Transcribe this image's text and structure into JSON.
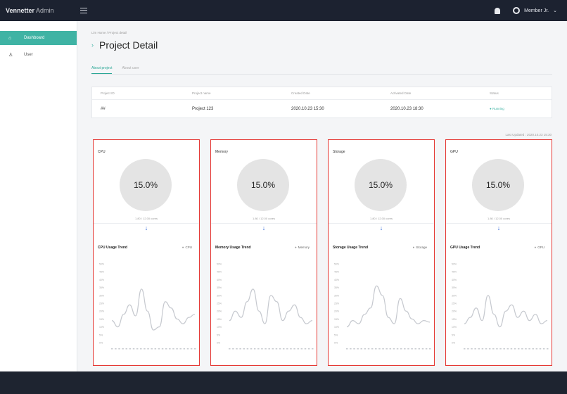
{
  "app": {
    "brand_main": "Vennetter",
    "brand_sub": "Admin",
    "user_name": "Member Jr."
  },
  "sidebar": {
    "items": [
      {
        "label": "Dashboard",
        "icon": "home-icon",
        "active": true
      },
      {
        "label": "User",
        "icon": "user-icon",
        "active": false
      }
    ]
  },
  "page": {
    "breadcrumb": "Lim Home / Project detail",
    "title": "Project Detail",
    "tabs": [
      "About project",
      "About user"
    ],
    "last_updated": "Last Updated : 2020.10.23 15:30"
  },
  "project_table": {
    "headers": [
      "Project ID",
      "Project name",
      "Created Date",
      "Activated Date",
      "Status"
    ],
    "row": [
      "##",
      "Project 123",
      "2020.10.23 15:30",
      "2020.10.23 18:30",
      "Running"
    ]
  },
  "accent_color": "#3fb3a4",
  "cards": [
    {
      "label": "CPU",
      "value": "15.0%",
      "sub": "1.80 / 12.00 cores",
      "trend_title": "CPU Usage Trend",
      "legend": "CPU"
    },
    {
      "label": "Memory",
      "value": "15.0%",
      "sub": "1.80 / 12.00 cores",
      "trend_title": "Memory Usage Trend",
      "legend": "Memory"
    },
    {
      "label": "Storage",
      "value": "15.0%",
      "sub": "1.80 / 12.00 cores",
      "trend_title": "Storage Usage Trend",
      "legend": "Storage"
    },
    {
      "label": "GPU",
      "value": "15.0%",
      "sub": "1.80 / 12.00 cores",
      "trend_title": "GPU Usage Trend",
      "legend": "GPU"
    }
  ],
  "trend_charts": [
    {
      "y_ticks": [
        "50%",
        "45%",
        "40%",
        "35%",
        "30%",
        "25%",
        "20%",
        "15%",
        "10%",
        "5%",
        "0%"
      ],
      "values": [
        14,
        10,
        18,
        24,
        17,
        34,
        20,
        8,
        10,
        26,
        22,
        15,
        12,
        16,
        18
      ]
    },
    {
      "y_ticks": [
        "50%",
        "45%",
        "40%",
        "35%",
        "30%",
        "25%",
        "20%",
        "15%",
        "10%",
        "5%",
        "0%"
      ],
      "values": [
        14,
        20,
        16,
        26,
        34,
        20,
        12,
        30,
        26,
        14,
        20,
        24,
        16,
        12,
        14
      ]
    },
    {
      "y_ticks": [
        "50%",
        "45%",
        "40%",
        "35%",
        "30%",
        "25%",
        "20%",
        "15%",
        "10%",
        "5%",
        "0%"
      ],
      "values": [
        10,
        14,
        12,
        18,
        22,
        36,
        30,
        16,
        12,
        28,
        20,
        15,
        12,
        14,
        13
      ]
    },
    {
      "y_ticks": [
        "50%",
        "45%",
        "40%",
        "35%",
        "30%",
        "25%",
        "20%",
        "15%",
        "10%",
        "5%",
        "0%"
      ],
      "values": [
        12,
        16,
        22,
        14,
        30,
        18,
        10,
        20,
        24,
        16,
        20,
        14,
        18,
        12,
        14
      ]
    }
  ]
}
